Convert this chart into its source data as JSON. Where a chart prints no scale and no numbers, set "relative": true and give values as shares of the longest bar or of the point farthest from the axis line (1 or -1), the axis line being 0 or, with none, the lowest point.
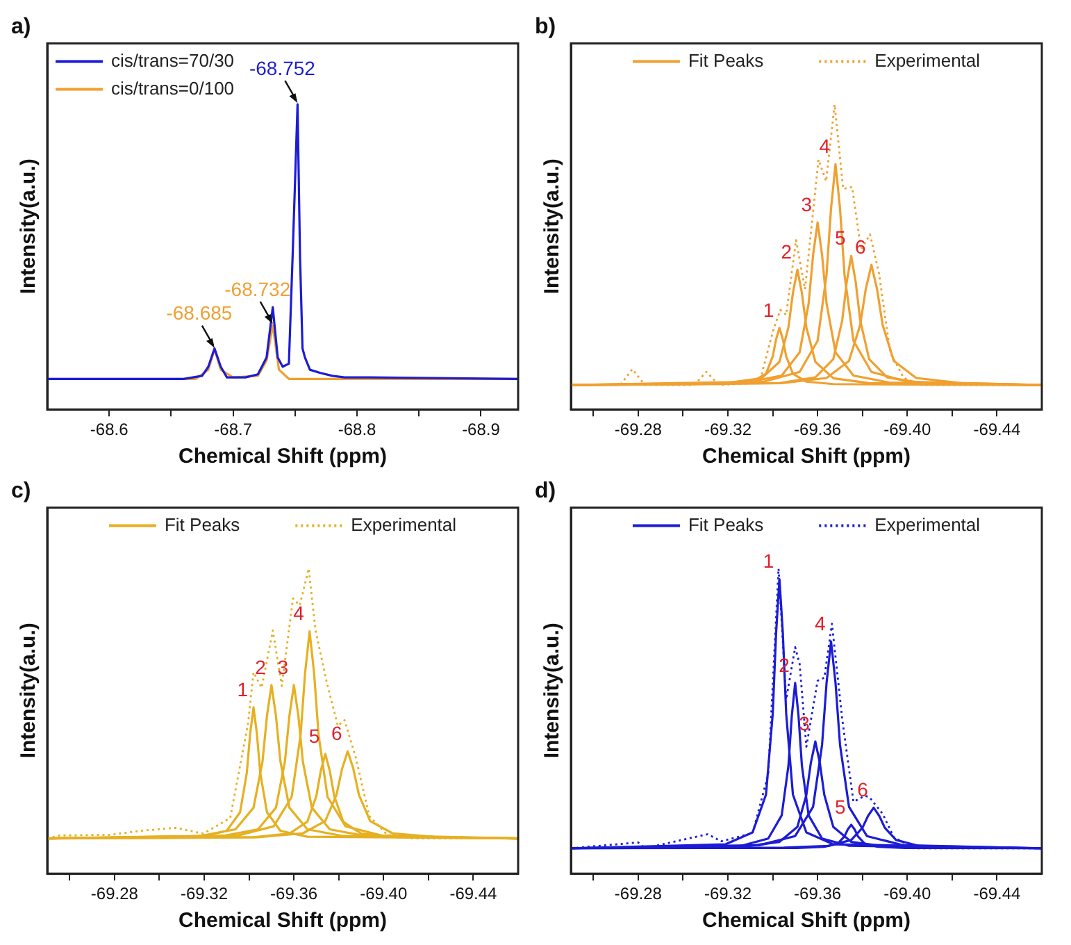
{
  "chart_data": [
    {
      "type": "line",
      "title": "a)",
      "xlabel": "Chemical Shift (ppm)",
      "ylabel": "Intensity(a.u.)",
      "relative": true,
      "marker": "none",
      "legend": "top left",
      "grid": false,
      "xlim": [
        -68.55,
        -68.93
      ],
      "xticks": [
        {
          "value": -68.6,
          "label": "-68.6"
        },
        {
          "value": -68.65,
          "label": null
        },
        {
          "value": -68.7,
          "label": "-68.7"
        },
        {
          "value": -68.75,
          "label": null
        },
        {
          "value": -68.8,
          "label": "-68.8"
        },
        {
          "value": -68.85,
          "label": null
        },
        {
          "value": -68.9,
          "label": "-68.9"
        }
      ],
      "series": [
        {
          "name": "cis/trans=70/30",
          "color": "#1c1cd6",
          "x": [
            -68.55,
            -68.66,
            -68.675,
            -68.68,
            -68.685,
            -68.69,
            -68.695,
            -68.71,
            -68.72,
            -68.727,
            -68.732,
            -68.736,
            -68.74,
            -68.745,
            -68.748,
            -68.752,
            -68.754,
            -68.756,
            -68.758,
            -68.762,
            -68.77,
            -68.78,
            -68.79,
            -68.81,
            -68.93
          ],
          "values": [
            0.1,
            0.1,
            0.11,
            0.14,
            0.2,
            0.14,
            0.105,
            0.105,
            0.115,
            0.17,
            0.335,
            0.17,
            0.14,
            0.15,
            0.5,
            1.0,
            0.5,
            0.2,
            0.17,
            0.13,
            0.12,
            0.11,
            0.105,
            0.105,
            0.1
          ]
        },
        {
          "name": "cis/trans=0/100",
          "color": "#f0a030",
          "x": [
            -68.55,
            -68.67,
            -68.68,
            -68.685,
            -68.69,
            -68.7,
            -68.72,
            -68.727,
            -68.732,
            -68.737,
            -68.745,
            -68.93
          ],
          "values": [
            0.1,
            0.1,
            0.13,
            0.197,
            0.13,
            0.105,
            0.11,
            0.16,
            0.276,
            0.13,
            0.1,
            0.1
          ]
        }
      ],
      "annotations": [
        {
          "text": "-68.752",
          "x": -68.752,
          "y": 1.0
        },
        {
          "text": "-68.732",
          "x": -68.732,
          "y": 0.276
        },
        {
          "text": "-68.685",
          "x": -68.685,
          "y": 0.197
        }
      ]
    },
    {
      "type": "line",
      "title": "b)",
      "xlabel": "Chemical Shift (ppm)",
      "ylabel": "Intensity(a.u.)",
      "relative": true,
      "marker": "none",
      "legend": "top",
      "grid": false,
      "xlim": [
        -69.25,
        -69.46
      ],
      "xticks": [
        {
          "value": -69.26,
          "label": null
        },
        {
          "value": -69.28,
          "label": "-69.28"
        },
        {
          "value": -69.3,
          "label": null
        },
        {
          "value": -69.32,
          "label": "-69.32"
        },
        {
          "value": -69.34,
          "label": null
        },
        {
          "value": -69.36,
          "label": "-69.36"
        },
        {
          "value": -69.38,
          "label": null
        },
        {
          "value": -69.4,
          "label": "-69.40"
        },
        {
          "value": -69.42,
          "label": null
        },
        {
          "value": -69.44,
          "label": "-69.44"
        }
      ],
      "series": [
        {
          "name": "Fit Peaks",
          "color": "#f0a030",
          "x": [
            -69.25,
            -69.319,
            -69.331,
            -69.337,
            -69.34,
            -69.3415,
            -69.343,
            -69.3445,
            -69.346,
            -69.349,
            -69.355,
            -69.367,
            -69.46
          ],
          "values": [
            0.08,
            0.083,
            0.091,
            0.117,
            0.174,
            0.23,
            0.267,
            0.23,
            0.174,
            0.117,
            0.091,
            0.083,
            0.08
          ]
        },
        {
          "color": "#f0a030",
          "x": [
            -69.25,
            -69.319,
            -69.335,
            -69.343,
            -69.347,
            -69.349,
            -69.351,
            -69.353,
            -69.355,
            -69.359,
            -69.367,
            -69.383,
            -69.46
          ],
          "values": [
            0.08,
            0.086,
            0.102,
            0.156,
            0.269,
            0.382,
            0.458,
            0.382,
            0.269,
            0.156,
            0.102,
            0.086,
            0.08
          ]
        },
        {
          "color": "#f0a030",
          "x": [
            -69.25,
            -69.328,
            -69.344,
            -69.352,
            -69.356,
            -69.358,
            -69.36,
            -69.362,
            -69.364,
            -69.368,
            -69.376,
            -69.392,
            -69.46
          ],
          "values": [
            0.08,
            0.088,
            0.111,
            0.187,
            0.347,
            0.506,
            0.613,
            0.506,
            0.347,
            0.187,
            0.111,
            0.088,
            0.08
          ]
        },
        {
          "color": "#f0a030",
          "x": [
            -69.25,
            -69.336,
            -69.352,
            -69.36,
            -69.364,
            -69.366,
            -69.368,
            -69.37,
            -69.372,
            -69.376,
            -69.384,
            -69.4,
            -69.46
          ],
          "values": [
            0.08,
            0.091,
            0.123,
            0.225,
            0.442,
            0.659,
            0.804,
            0.659,
            0.442,
            0.225,
            0.123,
            0.091,
            0.08
          ]
        },
        {
          "color": "#f0a030",
          "x": [
            -69.25,
            -69.343,
            -69.359,
            -69.367,
            -69.371,
            -69.373,
            -69.375,
            -69.377,
            -69.379,
            -69.383,
            -69.391,
            -69.407,
            -69.46
          ],
          "values": [
            0.08,
            0.086,
            0.105,
            0.165,
            0.292,
            0.418,
            0.503,
            0.418,
            0.292,
            0.165,
            0.105,
            0.086,
            0.08
          ]
        },
        {
          "color": "#f0a030",
          "x": [
            -69.25,
            -69.344,
            -69.364,
            -69.374,
            -69.379,
            -69.3815,
            -69.384,
            -69.3865,
            -69.389,
            -69.394,
            -69.404,
            -69.424,
            -69.46
          ],
          "values": [
            0.08,
            0.086,
            0.103,
            0.159,
            0.277,
            0.395,
            0.474,
            0.395,
            0.277,
            0.159,
            0.103,
            0.086,
            0.08
          ]
        },
        {
          "name": "Experimental",
          "color": "#f0a030",
          "line_style": "dotted",
          "x": [
            -69.25,
            -69.272,
            -69.2774,
            -69.283,
            -69.305,
            -69.3104,
            -69.316,
            -69.328,
            -69.3344,
            -69.3404,
            -69.3434,
            -69.346,
            -69.3504,
            -69.3544,
            -69.3604,
            -69.3638,
            -69.3676,
            -69.3714,
            -69.3754,
            -69.3794,
            -69.3834,
            -69.3874,
            -69.3924,
            -69.3984,
            -69.4064,
            -69.46
          ],
          "values": [
            0.08,
            0.08,
            0.132,
            0.08,
            0.08,
            0.123,
            0.08,
            0.085,
            0.097,
            0.265,
            0.326,
            0.31,
            0.555,
            0.394,
            0.819,
            0.748,
            1.0,
            0.723,
            0.729,
            0.523,
            0.574,
            0.445,
            0.187,
            0.103,
            0.08,
            0.08
          ]
        }
      ],
      "annotations": [
        {
          "text": "1",
          "x": -69.343,
          "y": 0.267
        },
        {
          "text": "2",
          "x": -69.351,
          "y": 0.458
        },
        {
          "text": "3",
          "x": -69.36,
          "y": 0.613
        },
        {
          "text": "4",
          "x": -69.368,
          "y": 0.804
        },
        {
          "text": "5",
          "x": -69.375,
          "y": 0.503
        },
        {
          "text": "6",
          "x": -69.384,
          "y": 0.474
        }
      ]
    },
    {
      "type": "line",
      "title": "c)",
      "xlabel": "Chemical Shift (ppm)",
      "ylabel": "Intensity(a.u.)",
      "relative": true,
      "marker": "none",
      "legend": "top",
      "grid": false,
      "xlim": [
        -69.25,
        -69.46
      ],
      "xticks": [
        {
          "value": -69.26,
          "label": null
        },
        {
          "value": -69.28,
          "label": "-69.28"
        },
        {
          "value": -69.3,
          "label": null
        },
        {
          "value": -69.32,
          "label": "-69.32"
        },
        {
          "value": -69.34,
          "label": null
        },
        {
          "value": -69.36,
          "label": "-69.36"
        },
        {
          "value": -69.38,
          "label": null
        },
        {
          "value": -69.4,
          "label": "-69.40"
        },
        {
          "value": -69.42,
          "label": null
        },
        {
          "value": -69.44,
          "label": "-69.44"
        }
      ],
      "series": [
        {
          "name": "Fit Peaks",
          "color": "#e6b022",
          "x": [
            -69.25,
            -69.318,
            -69.33,
            -69.336,
            -69.339,
            -69.3405,
            -69.342,
            -69.3435,
            -69.345,
            -69.348,
            -69.354,
            -69.366,
            -69.46
          ],
          "values": [
            0.115,
            0.121,
            0.14,
            0.201,
            0.33,
            0.459,
            0.545,
            0.459,
            0.33,
            0.201,
            0.14,
            0.121,
            0.115
          ]
        },
        {
          "color": "#e6b022",
          "x": [
            -69.25,
            -69.318,
            -69.334,
            -69.342,
            -69.346,
            -69.348,
            -69.35,
            -69.352,
            -69.354,
            -69.358,
            -69.366,
            -69.382,
            -69.46
          ],
          "values": [
            0.115,
            0.123,
            0.145,
            0.216,
            0.367,
            0.517,
            0.618,
            0.517,
            0.367,
            0.216,
            0.145,
            0.123,
            0.115
          ]
        },
        {
          "color": "#e6b022",
          "x": [
            -69.25,
            -69.328,
            -69.344,
            -69.352,
            -69.356,
            -69.358,
            -69.36,
            -69.362,
            -69.364,
            -69.368,
            -69.376,
            -69.392,
            -69.46
          ],
          "values": [
            0.115,
            0.123,
            0.145,
            0.216,
            0.367,
            0.517,
            0.618,
            0.517,
            0.367,
            0.216,
            0.145,
            0.123,
            0.115
          ]
        },
        {
          "color": "#e6b022",
          "x": [
            -69.25,
            -69.335,
            -69.351,
            -69.359,
            -69.363,
            -69.365,
            -69.367,
            -69.369,
            -69.371,
            -69.375,
            -69.383,
            -69.399,
            -69.46
          ],
          "values": [
            0.115,
            0.125,
            0.155,
            0.251,
            0.455,
            0.658,
            0.794,
            0.658,
            0.455,
            0.251,
            0.155,
            0.125,
            0.115
          ]
        },
        {
          "color": "#e6b022",
          "x": [
            -69.25,
            -69.342,
            -69.358,
            -69.366,
            -69.37,
            -69.372,
            -69.374,
            -69.376,
            -69.378,
            -69.382,
            -69.39,
            -69.406,
            -69.46
          ],
          "values": [
            0.115,
            0.119,
            0.131,
            0.17,
            0.254,
            0.337,
            0.392,
            0.337,
            0.254,
            0.17,
            0.131,
            0.119,
            0.115
          ]
        },
        {
          "color": "#e6b022",
          "x": [
            -69.25,
            -69.344,
            -69.364,
            -69.374,
            -69.379,
            -69.3815,
            -69.384,
            -69.3865,
            -69.389,
            -69.394,
            -69.404,
            -69.424,
            -69.46
          ],
          "values": [
            0.115,
            0.119,
            0.132,
            0.172,
            0.258,
            0.344,
            0.401,
            0.344,
            0.258,
            0.172,
            0.132,
            0.119,
            0.115
          ]
        },
        {
          "name": "Experimental",
          "color": "#e6b022",
          "line_style": "dotted",
          "x": [
            -69.25,
            -69.2556,
            -69.278,
            -69.2916,
            -69.3072,
            -69.3196,
            -69.3316,
            -69.3396,
            -69.342,
            -69.3456,
            -69.3506,
            -69.3546,
            -69.3596,
            -69.3626,
            -69.3666,
            -69.3696,
            -69.3746,
            -69.3796,
            -69.3826,
            -69.3876,
            -69.3936,
            -69.4016,
            -69.4136,
            -69.46
          ],
          "values": [
            0.115,
            0.125,
            0.127,
            0.14,
            0.15,
            0.131,
            0.182,
            0.494,
            0.66,
            0.609,
            0.797,
            0.615,
            0.902,
            0.879,
            1.0,
            0.8,
            0.628,
            0.484,
            0.503,
            0.38,
            0.189,
            0.127,
            0.115,
            0.115
          ]
        }
      ],
      "annotations": [
        {
          "text": "1",
          "x": -69.342,
          "y": 0.545
        },
        {
          "text": "2",
          "x": -69.35,
          "y": 0.618
        },
        {
          "text": "3",
          "x": -69.36,
          "y": 0.618
        },
        {
          "text": "4",
          "x": -69.367,
          "y": 0.794
        },
        {
          "text": "5",
          "x": -69.374,
          "y": 0.392
        },
        {
          "text": "6",
          "x": -69.384,
          "y": 0.401
        }
      ]
    },
    {
      "type": "line",
      "title": "d)",
      "xlabel": "Chemical Shift (ppm)",
      "ylabel": "Intensity(a.u.)",
      "relative": true,
      "marker": "none",
      "legend": "top",
      "grid": false,
      "xlim": [
        -69.25,
        -69.46
      ],
      "xticks": [
        {
          "value": -69.26,
          "label": null
        },
        {
          "value": -69.28,
          "label": "-69.28"
        },
        {
          "value": -69.3,
          "label": null
        },
        {
          "value": -69.32,
          "label": "-69.32"
        },
        {
          "value": -69.34,
          "label": null
        },
        {
          "value": -69.36,
          "label": "-69.36"
        },
        {
          "value": -69.38,
          "label": null
        },
        {
          "value": -69.4,
          "label": "-69.40"
        },
        {
          "value": -69.42,
          "label": null
        },
        {
          "value": -69.44,
          "label": "-69.44"
        }
      ],
      "series": [
        {
          "name": "Fit Peaks",
          "color": "#1c1cd6",
          "x": [
            -69.25,
            -69.319,
            -69.331,
            -69.337,
            -69.34,
            -69.3415,
            -69.343,
            -69.3445,
            -69.346,
            -69.349,
            -69.355,
            -69.367,
            -69.46
          ],
          "values": [
            0.083,
            0.096,
            0.135,
            0.259,
            0.524,
            0.789,
            0.965,
            0.789,
            0.524,
            0.259,
            0.135,
            0.096,
            0.083
          ]
        },
        {
          "color": "#1c1cd6",
          "x": [
            -69.25,
            -69.326,
            -69.338,
            -69.344,
            -69.347,
            -69.3485,
            -69.35,
            -69.3515,
            -69.353,
            -69.356,
            -69.362,
            -69.374,
            -69.46
          ],
          "values": [
            0.083,
            0.091,
            0.115,
            0.191,
            0.354,
            0.517,
            0.625,
            0.517,
            0.354,
            0.191,
            0.115,
            0.091,
            0.083
          ]
        },
        {
          "color": "#1c1cd6",
          "x": [
            -69.25,
            -69.327,
            -69.343,
            -69.351,
            -69.355,
            -69.357,
            -69.359,
            -69.361,
            -69.363,
            -69.367,
            -69.375,
            -69.391,
            -69.46
          ],
          "values": [
            0.083,
            0.088,
            0.104,
            0.153,
            0.258,
            0.363,
            0.433,
            0.363,
            0.258,
            0.153,
            0.104,
            0.088,
            0.083
          ]
        },
        {
          "color": "#1c1cd6",
          "x": [
            -69.25,
            -69.334,
            -69.35,
            -69.358,
            -69.362,
            -69.364,
            -69.366,
            -69.368,
            -69.37,
            -69.374,
            -69.382,
            -69.398,
            -69.46
          ],
          "values": [
            0.083,
            0.093,
            0.123,
            0.219,
            0.422,
            0.625,
            0.761,
            0.625,
            0.422,
            0.219,
            0.123,
            0.093,
            0.083
          ]
        },
        {
          "color": "#1c1cd6",
          "x": [
            -69.25,
            -69.351,
            -69.363,
            -69.369,
            -69.372,
            -69.3735,
            -69.375,
            -69.3765,
            -69.378,
            -69.381,
            -69.387,
            -69.399,
            -69.46
          ],
          "values": [
            0.083,
            0.084,
            0.088,
            0.098,
            0.122,
            0.145,
            0.16,
            0.145,
            0.122,
            0.098,
            0.088,
            0.084,
            0.083
          ]
        },
        {
          "color": "#1c1cd6",
          "x": [
            -69.25,
            -69.345,
            -69.365,
            -69.375,
            -69.38,
            -69.3825,
            -69.385,
            -69.3875,
            -69.39,
            -69.395,
            -69.405,
            -69.425,
            -69.46
          ],
          "values": [
            0.083,
            0.085,
            0.091,
            0.11,
            0.15,
            0.189,
            0.216,
            0.189,
            0.15,
            0.11,
            0.091,
            0.085,
            0.083
          ]
        },
        {
          "name": "Experimental",
          "color": "#1c1cd6",
          "line_style": "dotted",
          "x": [
            -69.25,
            -69.28,
            -69.283,
            -69.311,
            -69.317,
            -69.331,
            -69.338,
            -69.3426,
            -69.346,
            -69.35,
            -69.352,
            -69.355,
            -69.36,
            -69.363,
            -69.3664,
            -69.371,
            -69.376,
            -69.381,
            -69.383,
            -69.389,
            -69.394,
            -69.403,
            -69.46
          ],
          "values": [
            0.083,
            0.102,
            0.083,
            0.129,
            0.106,
            0.132,
            0.326,
            1.0,
            0.571,
            0.742,
            0.687,
            0.416,
            0.632,
            0.642,
            0.819,
            0.506,
            0.235,
            0.255,
            0.251,
            0.196,
            0.119,
            0.083,
            0.083
          ]
        }
      ],
      "annotations": [
        {
          "text": "1",
          "x": -69.343,
          "y": 0.965
        },
        {
          "text": "2",
          "x": -69.35,
          "y": 0.625
        },
        {
          "text": "3",
          "x": -69.359,
          "y": 0.433
        },
        {
          "text": "4",
          "x": -69.366,
          "y": 0.761
        },
        {
          "text": "5",
          "x": -69.375,
          "y": 0.16
        },
        {
          "text": "6",
          "x": -69.385,
          "y": 0.216
        }
      ]
    }
  ]
}
